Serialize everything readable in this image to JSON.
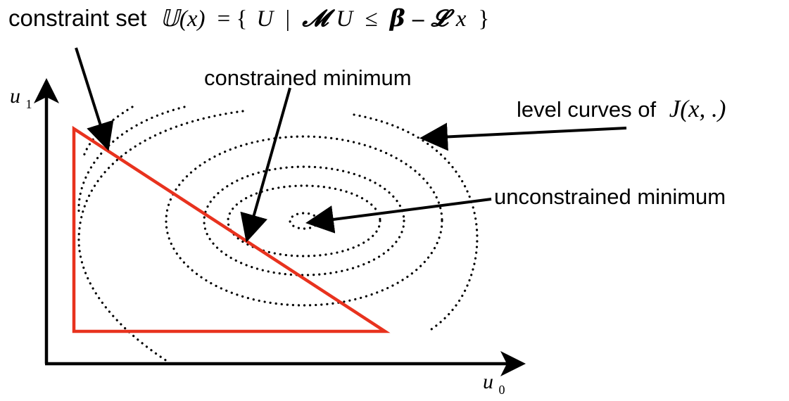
{
  "labels": {
    "constraint_prefix": "constraint set",
    "constraint_set": "𝕌(x)",
    "constraint_eq": "= {",
    "constraint_U": "U",
    "constraint_bar": "|",
    "constraint_M": "𝓜",
    "constraint_U2": "U",
    "constraint_leq": "≤",
    "constraint_beta": "𝜷",
    "constraint_minus": "–",
    "constraint_L": "𝓛",
    "constraint_x": "x",
    "constraint_close": "}",
    "constrained_minimum": "constrained minimum",
    "level_curves_prefix": "level curves of",
    "level_curves_func": "J(x, .)",
    "unconstrained_minimum": "unconstrained minimum",
    "axis_u1_base": "u",
    "axis_u1_sub": "1",
    "axis_u0_base": "u",
    "axis_u0_sub": "0"
  },
  "colors": {
    "constraint_triangle": "#e8321e",
    "ink": "#000000"
  }
}
